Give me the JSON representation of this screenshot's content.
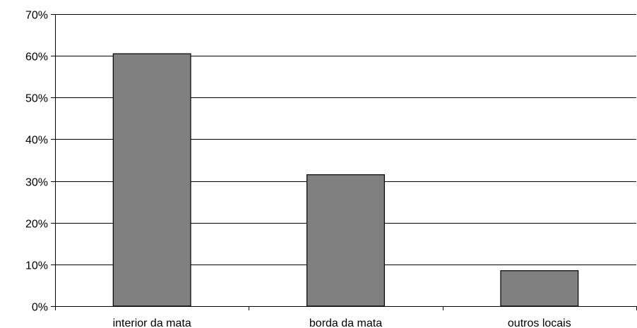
{
  "chart_data": {
    "type": "bar",
    "categories": [
      "interior da mata",
      "borda da mata",
      "outros locais"
    ],
    "values": [
      60.5,
      31.5,
      8.5
    ],
    "ylim": [
      0,
      70
    ],
    "yticks": [
      0,
      10,
      20,
      30,
      40,
      50,
      60,
      70
    ],
    "ytick_labels": [
      "0%",
      "10%",
      "20%",
      "30%",
      "40%",
      "50%",
      "60%",
      "70%"
    ],
    "grid": true,
    "legend": "none",
    "title": "",
    "xlabel": "",
    "ylabel": "",
    "colors": {
      "bar_fill": "#808080",
      "bar_stroke": "#000000",
      "grid": "#000000",
      "axis": "#000000"
    }
  }
}
